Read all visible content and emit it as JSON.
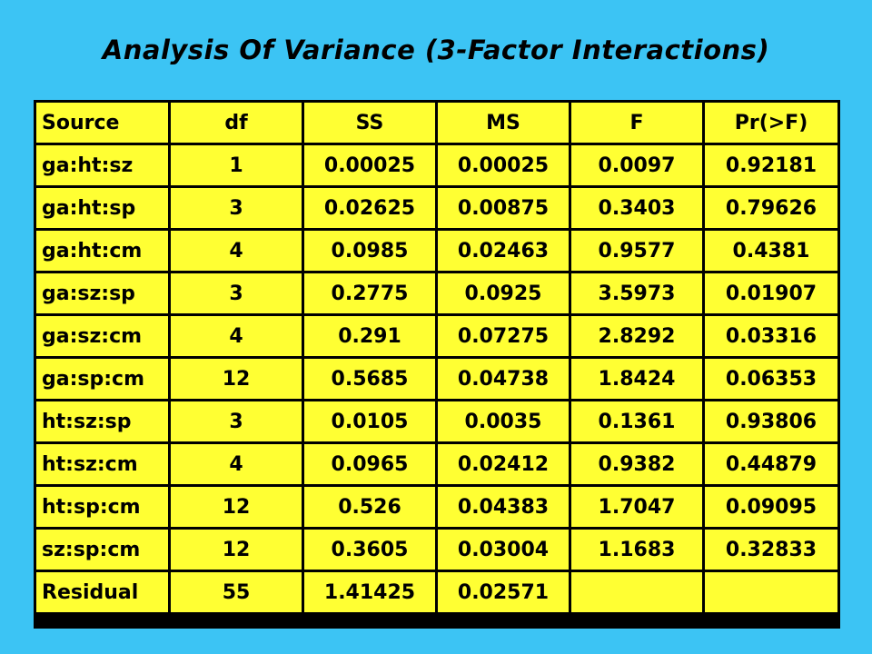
{
  "title": "Analysis Of Variance (3-Factor Interactions)",
  "colors": {
    "background": "#3cc4f4",
    "cell_fill": "#ffff33",
    "grid": "#000000"
  },
  "table": {
    "columns": [
      "Source",
      "df",
      "SS",
      "MS",
      "F",
      "Pr(>F)"
    ],
    "rows": [
      [
        "ga:ht:sz",
        "1",
        "0.00025",
        "0.00025",
        "0.0097",
        "0.92181"
      ],
      [
        "ga:ht:sp",
        "3",
        "0.02625",
        "0.00875",
        "0.3403",
        "0.79626"
      ],
      [
        "ga:ht:cm",
        "4",
        "0.0985",
        "0.02463",
        "0.9577",
        "0.4381"
      ],
      [
        "ga:sz:sp",
        "3",
        "0.2775",
        "0.0925",
        "3.5973",
        "0.01907"
      ],
      [
        "ga:sz:cm",
        "4",
        "0.291",
        "0.07275",
        "2.8292",
        "0.03316"
      ],
      [
        "ga:sp:cm",
        "12",
        "0.5685",
        "0.04738",
        "1.8424",
        "0.06353"
      ],
      [
        "ht:sz:sp",
        "3",
        "0.0105",
        "0.0035",
        "0.1361",
        "0.93806"
      ],
      [
        "ht:sz:cm",
        "4",
        "0.0965",
        "0.02412",
        "0.9382",
        "0.44879"
      ],
      [
        "ht:sp:cm",
        "12",
        "0.526",
        "0.04383",
        "1.7047",
        "0.09095"
      ],
      [
        "sz:sp:cm",
        "12",
        "0.3605",
        "0.03004",
        "1.1683",
        "0.32833"
      ],
      [
        "Residual",
        "55",
        "1.41425",
        "0.02571",
        "",
        ""
      ]
    ]
  }
}
